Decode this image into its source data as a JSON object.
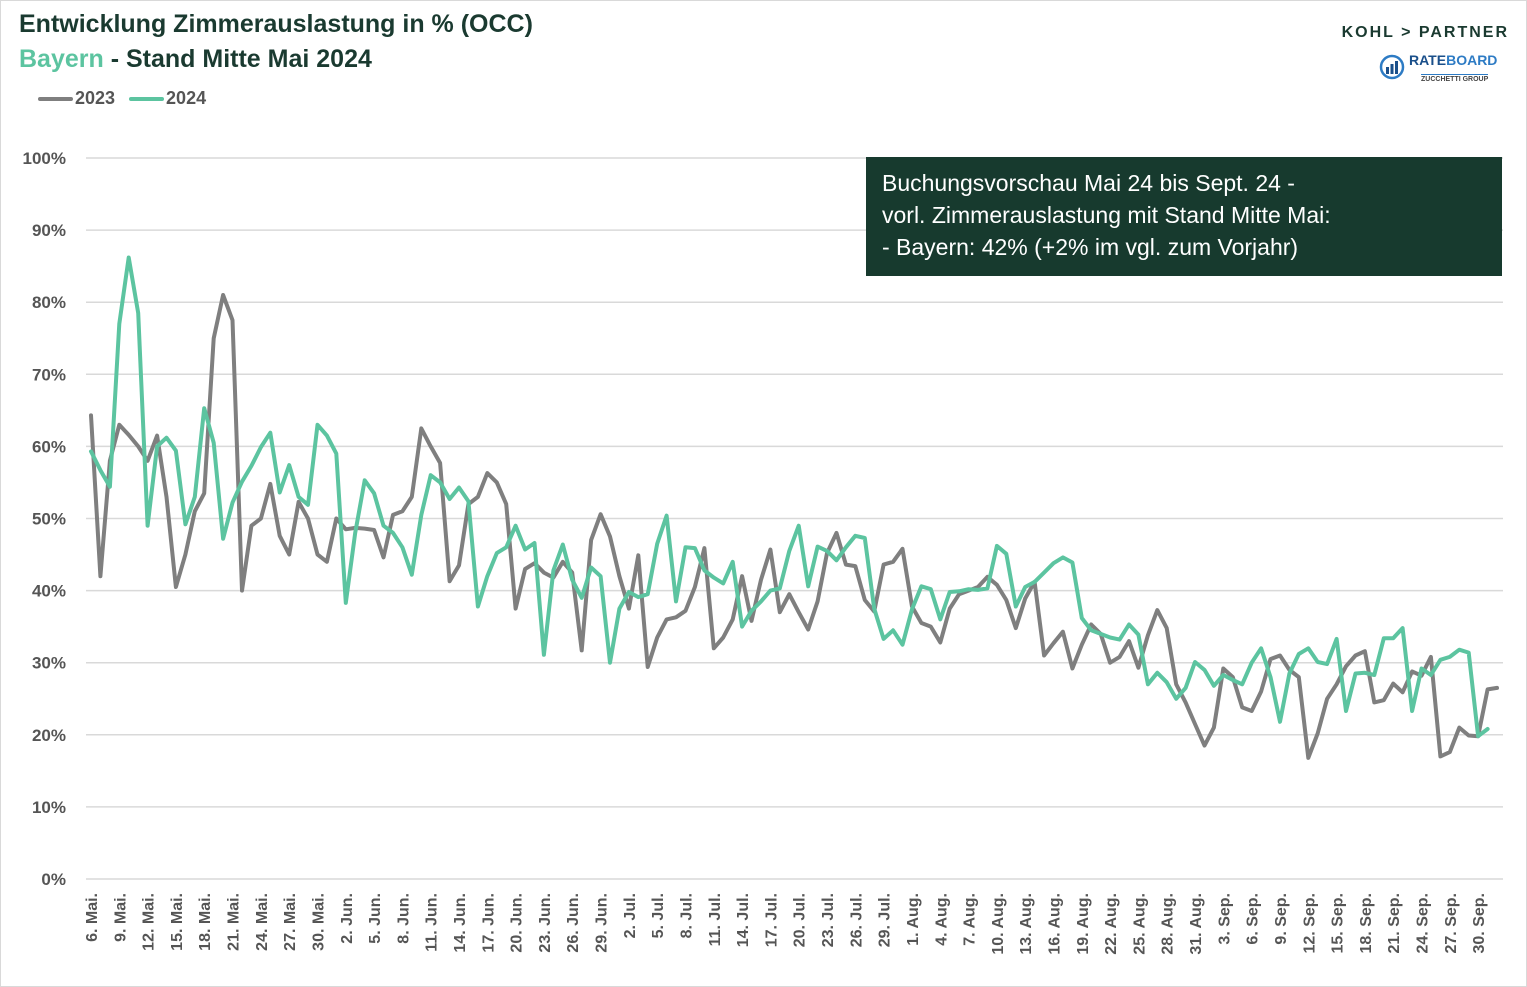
{
  "header": {
    "title_line1": "Entwicklung Zimmerauslastung in % (OCC)",
    "title_line2_accent": "Bayern",
    "title_line2_rest": " - Stand Mitte Mai 2024"
  },
  "logos": {
    "kohl_partner": "KOHL > PARTNER",
    "rateboard_rate": "RATE",
    "rateboard_board": "BOARD",
    "rateboard_sub": "ZUCCHETTI GROUP"
  },
  "info_box": {
    "line1": "Buchungsvorschau Mai 24 bis Sept. 24 -",
    "line2": "vorl. Zimmerauslastung mit Stand Mitte Mai:",
    "line3": "- Bayern:  42% (+2% im vgl. zum Vorjahr)"
  },
  "colors": {
    "series_2023": "#7f7f7f",
    "series_2024": "#5cc4a0",
    "title": "#1a3a30",
    "info_box_bg": "#173a2e",
    "grid": "#d9d9d9"
  },
  "chart_data": {
    "type": "line",
    "title": "Entwicklung Zimmerauslastung in % (OCC) Bayern - Stand Mitte Mai 2024",
    "xlabel": "",
    "ylabel": "",
    "ylim": [
      0,
      100
    ],
    "y_ticks": [
      "0%",
      "10%",
      "20%",
      "30%",
      "40%",
      "50%",
      "60%",
      "70%",
      "80%",
      "90%",
      "100%"
    ],
    "grid": true,
    "legend_position": "top-left",
    "x_tick_labels": [
      "6. Mai.",
      "9. Mai.",
      "12. Mai.",
      "15. Mai.",
      "18. Mai.",
      "21. Mai.",
      "24. Mai.",
      "27. Mai.",
      "30. Mai.",
      "2. Jun.",
      "5. Jun.",
      "8. Jun.",
      "11. Jun.",
      "14. Jun.",
      "17. Jun.",
      "20. Jun.",
      "23. Jun.",
      "26. Jun.",
      "29. Jun.",
      "2. Jul.",
      "5. Jul.",
      "8. Jul.",
      "11. Jul.",
      "14. Jul.",
      "17. Jul.",
      "20. Jul.",
      "23. Jul.",
      "26. Jul.",
      "29. Jul.",
      "1. Aug.",
      "4. Aug.",
      "7. Aug.",
      "10. Aug.",
      "13. Aug.",
      "16. Aug.",
      "19. Aug.",
      "22. Aug.",
      "25. Aug.",
      "28. Aug.",
      "31. Aug.",
      "3. Sep.",
      "6. Sep.",
      "9. Sep.",
      "12. Sep.",
      "15. Sep.",
      "18. Sep.",
      "21. Sep.",
      "24. Sep.",
      "27. Sep.",
      "30. Sep."
    ],
    "x_start": "6. Mai.",
    "x_end": "30. Sep.",
    "x_step_days": 1,
    "series": [
      {
        "name": "2023",
        "values": [
          64.3,
          42,
          58,
          63,
          61.6,
          60,
          58,
          61.5,
          53,
          40.5,
          45,
          51,
          53.5,
          75,
          81,
          77.5,
          40,
          49,
          50,
          54.8,
          47.6,
          45,
          52.3,
          50,
          45,
          44,
          50,
          48.5,
          48.7,
          48.6,
          48.4,
          44.6,
          50.5,
          51,
          53,
          62.5,
          60,
          57.7,
          41.3,
          43.5,
          52,
          53,
          56.3,
          55,
          52,
          37.5,
          43,
          43.8,
          42.5,
          41.8,
          44,
          42.5,
          31.7,
          47,
          50.6,
          47.5,
          42,
          37.5,
          44.9,
          29.4,
          33.5,
          36,
          36.3,
          37.2,
          40.5,
          45.9,
          32,
          33.5,
          36,
          42,
          35.8,
          41.5,
          45.7,
          37,
          39.5,
          37,
          34.6,
          38.5,
          45.2,
          48,
          43.6,
          43.4,
          38.7,
          37.1,
          43.6,
          44,
          45.8,
          37.8,
          35.5,
          35,
          32.8,
          37.5,
          39.5,
          40,
          40.5,
          41.9,
          40.8,
          38.7,
          34.8,
          38.9,
          41.2,
          31,
          32.7,
          34.3,
          29.2,
          32.5,
          35.3,
          34,
          30,
          30.8,
          33,
          29.3,
          33.8,
          37.3,
          34.8,
          27,
          24.5,
          21.5,
          18.5,
          21,
          29.2,
          28,
          23.8,
          23.3,
          26,
          30.5,
          31,
          29,
          28,
          16.8,
          20.2,
          25,
          27,
          29.5,
          31,
          31.6,
          24.5,
          24.8,
          27.1,
          25.9,
          28.8,
          28.2,
          30.8,
          17,
          17.6,
          21,
          19.9,
          19.8,
          26.3,
          26.5
        ]
      },
      {
        "name": "2024",
        "values": [
          59.3,
          56.7,
          54.4,
          77,
          86.2,
          78.5,
          49,
          60,
          61.2,
          59.4,
          49.2,
          53,
          65.3,
          60.5,
          47.2,
          52.2,
          55.1,
          57.3,
          59.9,
          61.9,
          53.6,
          57.4,
          53,
          51.9,
          63,
          61.5,
          59,
          38.3,
          48,
          55.3,
          53.5,
          49,
          48,
          46,
          42.2,
          50.5,
          56,
          55,
          52.7,
          54.3,
          52.4,
          37.8,
          42,
          45.2,
          46,
          49,
          45.7,
          46.6,
          31.1,
          42.8,
          46.4,
          41.5,
          39,
          43.2,
          42,
          30,
          37.5,
          39.8,
          39.1,
          39.5,
          46.5,
          50.4,
          38.5,
          46,
          45.9,
          42.8,
          41.8,
          41,
          44,
          35,
          37.2,
          38.5,
          40,
          40.3,
          45.5,
          49,
          40.6,
          46.1,
          45.5,
          44.2,
          46,
          47.6,
          47.3,
          37.5,
          33.3,
          34.5,
          32.5,
          37.4,
          40.6,
          40.2,
          36,
          39.8,
          39.9,
          40.2,
          40.1,
          40.3,
          46.2,
          45.1,
          37.8,
          40.5,
          41.2,
          42.5,
          43.8,
          44.6,
          43.9,
          36.2,
          34.5,
          34,
          33.5,
          33.2,
          35.3,
          33.9,
          27,
          28.6,
          27.3,
          25,
          26.5,
          30.1,
          29,
          26.8,
          28.3,
          27.6,
          27,
          30,
          32,
          28,
          21.8,
          28.5,
          31.2,
          32,
          30.1,
          29.8,
          33.3,
          23.3,
          28.5,
          28.6,
          28.3,
          33.4,
          33.4,
          34.8,
          23.3,
          29.2,
          28.3,
          30.4,
          30.8,
          31.8,
          31.4,
          19.8,
          20.8
        ]
      }
    ]
  }
}
